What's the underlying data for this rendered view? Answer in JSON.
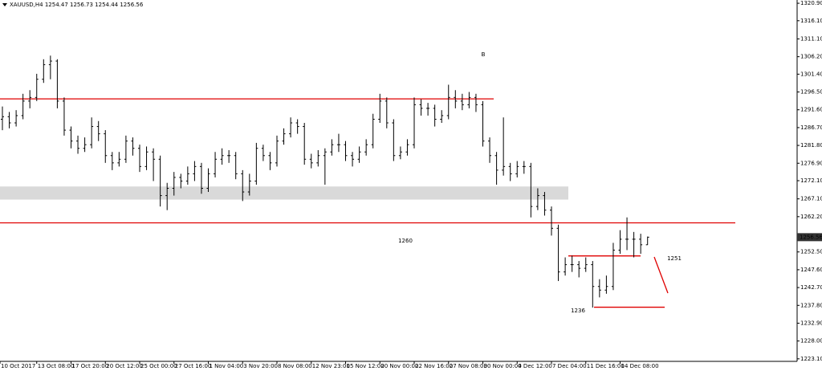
{
  "chart_data": {
    "type": "ohlc",
    "title": "XAUUSD,H4  1254.47 1256.73 1254.44 1256.56",
    "color": "#000000",
    "categories": [
      "10 Oct 2017",
      null,
      null,
      null,
      null,
      "13 Oct 08:00",
      null,
      null,
      null,
      null,
      "17 Oct 20:00",
      null,
      null,
      null,
      null,
      "20 Oct 12:00",
      null,
      null,
      null,
      null,
      "25 Oct 00:00",
      null,
      null,
      null,
      null,
      "27 Oct 16:00",
      null,
      null,
      null,
      null,
      "1 Nov 04:00",
      null,
      null,
      null,
      null,
      "3 Nov 20:00",
      null,
      null,
      null,
      null,
      "8 Nov 08:00",
      null,
      null,
      null,
      null,
      "12 Nov 23:00",
      null,
      null,
      null,
      null,
      "15 Nov 12:00",
      null,
      null,
      null,
      null,
      "20 Nov 00:00",
      null,
      null,
      null,
      null,
      "22 Nov 16:00",
      null,
      null,
      null,
      null,
      "27 Nov 08:00",
      null,
      null,
      null,
      null,
      "30 Nov 00:00",
      null,
      null,
      null,
      null,
      "4 Dec 12:00",
      null,
      null,
      null,
      null,
      "7 Dec 04:00",
      null,
      null,
      null,
      null,
      "11 Dec 16:00",
      null,
      null,
      null,
      null,
      "14 Dec 08:00",
      null,
      null,
      null,
      null
    ],
    "bars": [
      [
        1289,
        1292.5,
        1286,
        1289.7
      ],
      [
        1289.7,
        1291,
        1286.5,
        1288
      ],
      [
        1288,
        1291.5,
        1287,
        1290
      ],
      [
        1290,
        1296,
        1289,
        1294
      ],
      [
        1294,
        1297,
        1292,
        1295
      ],
      [
        1295,
        1301.5,
        1294,
        1300
      ],
      [
        1300,
        1305.5,
        1299,
        1304
      ],
      [
        1304,
        1306.5,
        1300,
        1305
      ],
      [
        1305,
        1305.5,
        1292,
        1294
      ],
      [
        1294,
        1295,
        1284.5,
        1286
      ],
      [
        1286,
        1287,
        1281,
        1283
      ],
      [
        1283,
        1284.5,
        1279.5,
        1281
      ],
      [
        1281,
        1284,
        1280,
        1282
      ],
      [
        1282,
        1289.5,
        1281,
        1287
      ],
      [
        1287,
        1288.5,
        1283,
        1285
      ],
      [
        1285,
        1286,
        1277,
        1279
      ],
      [
        1279,
        1280,
        1275,
        1277
      ],
      [
        1277,
        1280,
        1276,
        1278
      ],
      [
        1278,
        1284.5,
        1277,
        1283
      ],
      [
        1283,
        1284,
        1279,
        1281
      ],
      [
        1281,
        1282,
        1274.5,
        1276
      ],
      [
        1276,
        1281.5,
        1275,
        1280
      ],
      [
        1280,
        1281,
        1272,
        1278
      ],
      [
        1278,
        1279,
        1265,
        1268
      ],
      [
        1268,
        1271.5,
        1264,
        1270
      ],
      [
        1270,
        1274.5,
        1268,
        1273
      ],
      [
        1273,
        1274,
        1270,
        1272
      ],
      [
        1272,
        1276,
        1271,
        1274
      ],
      [
        1274,
        1277.5,
        1272,
        1276
      ],
      [
        1276,
        1277,
        1268.5,
        1270
      ],
      [
        1270,
        1275.5,
        1269,
        1274
      ],
      [
        1274,
        1280,
        1273,
        1278
      ],
      [
        1278,
        1281,
        1276.5,
        1279
      ],
      [
        1279,
        1280.5,
        1277,
        1279
      ],
      [
        1279,
        1280,
        1272.5,
        1274
      ],
      [
        1274,
        1275,
        1266.5,
        1269
      ],
      [
        1269,
        1274,
        1268,
        1272
      ],
      [
        1272,
        1282.5,
        1271,
        1281
      ],
      [
        1281,
        1282,
        1277.5,
        1279
      ],
      [
        1279,
        1280,
        1275,
        1277
      ],
      [
        1277,
        1284.5,
        1276,
        1283
      ],
      [
        1283,
        1286.5,
        1282,
        1285
      ],
      [
        1285,
        1289.5,
        1284,
        1288
      ],
      [
        1288,
        1289,
        1285,
        1287
      ],
      [
        1287,
        1288,
        1276.5,
        1278
      ],
      [
        1278,
        1279.5,
        1275.5,
        1277
      ],
      [
        1277,
        1280.5,
        1276,
        1279
      ],
      [
        1279,
        1281,
        1271,
        1280
      ],
      [
        1280,
        1283.5,
        1279,
        1282
      ],
      [
        1282,
        1285,
        1280,
        1282
      ],
      [
        1282,
        1283,
        1277.5,
        1279
      ],
      [
        1279,
        1280,
        1276,
        1278
      ],
      [
        1278,
        1281.5,
        1277,
        1280
      ],
      [
        1280,
        1283.5,
        1279,
        1282
      ],
      [
        1282,
        1290.5,
        1281,
        1289
      ],
      [
        1289,
        1296,
        1288,
        1294
      ],
      [
        1294,
        1295,
        1286.5,
        1288
      ],
      [
        1288,
        1289,
        1277.5,
        1279
      ],
      [
        1279,
        1281.5,
        1278,
        1280
      ],
      [
        1280,
        1283.5,
        1279,
        1282
      ],
      [
        1282,
        1295,
        1281,
        1293
      ],
      [
        1293,
        1294.5,
        1290,
        1292
      ],
      [
        1292,
        1293.5,
        1290,
        1292
      ],
      [
        1292,
        1293,
        1287,
        1289
      ],
      [
        1289,
        1291.5,
        1288,
        1290
      ],
      [
        1290,
        1298.5,
        1289,
        1295
      ],
      [
        1295,
        1297,
        1292,
        1294
      ],
      [
        1294,
        1296,
        1291.5,
        1293
      ],
      [
        1293,
        1296.5,
        1292,
        1295
      ],
      [
        1295,
        1296,
        1291,
        1293
      ],
      [
        1293,
        1294,
        1281.5,
        1283
      ],
      [
        1283,
        1284,
        1277,
        1279
      ],
      [
        1279,
        1280,
        1271,
        1275
      ],
      [
        1275,
        1289.5,
        1273.5,
        1276
      ],
      [
        1276,
        1277,
        1272,
        1274
      ],
      [
        1274,
        1277.5,
        1273,
        1276
      ],
      [
        1276,
        1277.5,
        1274,
        1276
      ],
      [
        1276,
        1277,
        1262,
        1265
      ],
      [
        1265,
        1270,
        1264,
        1268
      ],
      [
        1268,
        1269,
        1262.5,
        1264
      ],
      [
        1264,
        1265,
        1257,
        1259
      ],
      [
        1259,
        1260,
        1244.5,
        1247
      ],
      [
        1247,
        1251,
        1246,
        1249
      ],
      [
        1249,
        1251.5,
        1247,
        1249
      ],
      [
        1249,
        1250,
        1245.5,
        1248
      ],
      [
        1248,
        1251,
        1247,
        1249
      ],
      [
        1249,
        1250,
        1237.2,
        1243
      ],
      [
        1243,
        1245,
        1240,
        1242
      ],
      [
        1242,
        1246,
        1241,
        1243
      ],
      [
        1243,
        1255,
        1242,
        1253
      ],
      [
        1253,
        1258.5,
        1252,
        1256
      ],
      [
        1256,
        1262,
        1253,
        1256
      ],
      [
        1256,
        1258,
        1251,
        1256
      ],
      [
        1256,
        1257.5,
        1252,
        1254.47
      ],
      [
        1254.47,
        1256.73,
        1254.44,
        1256.56
      ]
    ],
    "ylim": [
      1222.4,
      1321.8
    ],
    "yticks": [
      {
        "value": 1320.9,
        "label": "1320.90"
      },
      {
        "value": 1316.1,
        "label": "1316.10"
      },
      {
        "value": 1311.1,
        "label": "1311.10"
      },
      {
        "value": 1306.2,
        "label": "1306.20"
      },
      {
        "value": 1301.4,
        "label": "1301.40"
      },
      {
        "value": 1296.5,
        "label": "1296.50"
      },
      {
        "value": 1291.6,
        "label": "1291.60"
      },
      {
        "value": 1286.7,
        "label": "1286.70"
      },
      {
        "value": 1281.8,
        "label": "1281.80"
      },
      {
        "value": 1276.9,
        "label": "1276.90"
      },
      {
        "value": 1272.1,
        "label": "1272.10"
      },
      {
        "value": 1267.1,
        "label": "1267.10"
      },
      {
        "value": 1262.2,
        "label": "1262.20"
      },
      {
        "value": 1252.5,
        "label": "1252.50"
      },
      {
        "value": 1247.6,
        "label": "1247.60"
      },
      {
        "value": 1242.7,
        "label": "1242.70"
      },
      {
        "value": 1237.8,
        "label": "1237.80"
      },
      {
        "value": 1232.9,
        "label": "1232.90"
      },
      {
        "value": 1228,
        "label": "1228.00"
      },
      {
        "value": 1223.1,
        "label": "1223.10"
      }
    ],
    "last_price": {
      "value": 1256.56,
      "label": "1256.56"
    },
    "levels": [
      {
        "value": 1294.6,
        "color": "#e00000"
      },
      {
        "value": 1260.5,
        "color": "#e00000"
      },
      {
        "value": 1251.4,
        "color": "#e00000"
      },
      {
        "value": 1237.3,
        "color": "#e00000"
      }
    ],
    "zone": {
      "from": 1266.9,
      "to": 1270.5,
      "color": "#d9d9d9"
    },
    "annotations": [
      {
        "text": "B",
        "color": "#2a2ae0"
      },
      {
        "text": "1260",
        "color": "#e02020"
      },
      {
        "text": "1251",
        "color": "#2a2ae0"
      },
      {
        "text": "1236",
        "color": "#2a2ae0"
      }
    ]
  }
}
